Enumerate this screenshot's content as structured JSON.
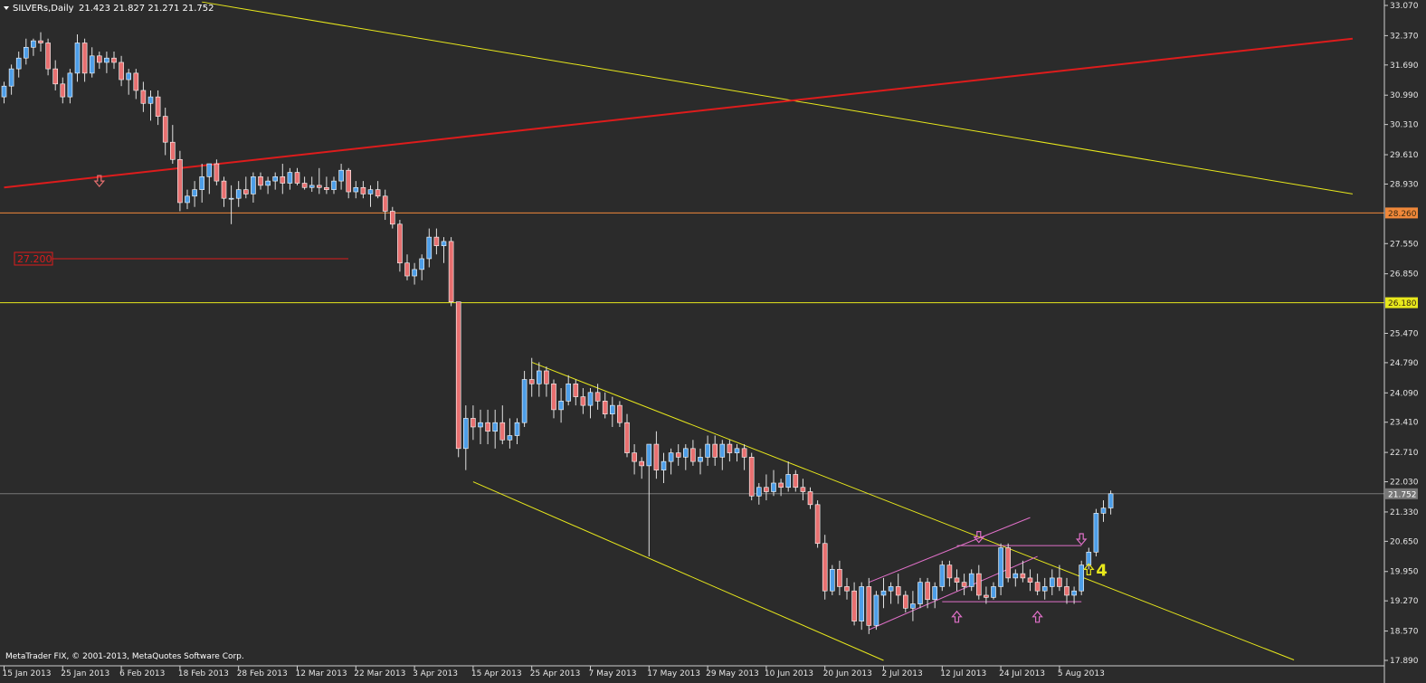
{
  "header": {
    "symbol": "SILVERs,Daily",
    "ohlc": "21.423 21.827 21.271 21.752"
  },
  "footer": {
    "copyright": "MetaTrader FIX, © 2001-2013, MetaQuotes Software Corp."
  },
  "colors": {
    "background": "#2b2b2b",
    "bull_candle": "#4d9ee8",
    "bear_candle": "#e87070",
    "wick": "#e0e0e0",
    "yellow_line": "#e8e81c",
    "red_line": "#dd1c1c",
    "orange_line": "#f0883a",
    "pink_line": "#e070c8",
    "axis_text": "#e6e6e6"
  },
  "chart_data": {
    "type": "candlestick",
    "symbol": "SILVERs",
    "timeframe": "Daily",
    "last": {
      "open": 21.423,
      "high": 21.827,
      "low": 21.271,
      "close": 21.752
    },
    "y_axis": {
      "ylim": [
        17.89,
        33.07
      ],
      "ticks": [
        "33.070",
        "32.370",
        "31.690",
        "30.990",
        "30.310",
        "29.610",
        "28.930",
        "28.260",
        "27.550",
        "26.850",
        "26.180",
        "25.470",
        "24.790",
        "24.090",
        "23.410",
        "22.710",
        "22.030",
        "21.752",
        "21.330",
        "20.650",
        "19.950",
        "19.270",
        "18.570",
        "17.890"
      ]
    },
    "x_axis": {
      "ticks": [
        {
          "label": "15 Jan 2013",
          "index": 0
        },
        {
          "label": "25 Jan 2013",
          "index": 8
        },
        {
          "label": "6 Feb 2013",
          "index": 16
        },
        {
          "label": "18 Feb 2013",
          "index": 24
        },
        {
          "label": "28 Feb 2013",
          "index": 32
        },
        {
          "label": "12 Mar 2013",
          "index": 40
        },
        {
          "label": "22 Mar 2013",
          "index": 48
        },
        {
          "label": "3 Apr 2013",
          "index": 56
        },
        {
          "label": "15 Apr 2013",
          "index": 64
        },
        {
          "label": "25 Apr 2013",
          "index": 72
        },
        {
          "label": "7 May 2013",
          "index": 80
        },
        {
          "label": "17 May 2013",
          "index": 88
        },
        {
          "label": "29 May 2013",
          "index": 96
        },
        {
          "label": "10 Jun 2013",
          "index": 104
        },
        {
          "label": "20 Jun 2013",
          "index": 112
        },
        {
          "label": "2 Jul 2013",
          "index": 120
        },
        {
          "label": "12 Jul 2013",
          "index": 128
        },
        {
          "label": "24 Jul 2013",
          "index": 136
        },
        {
          "label": "5 Aug 2013",
          "index": 144
        }
      ]
    },
    "candles": [
      [
        30.95,
        31.3,
        30.8,
        31.2
      ],
      [
        31.2,
        31.7,
        31.0,
        31.6
      ],
      [
        31.6,
        32.0,
        31.4,
        31.85
      ],
      [
        31.85,
        32.3,
        31.7,
        32.1
      ],
      [
        32.1,
        32.3,
        31.9,
        32.25
      ],
      [
        32.25,
        32.45,
        32.0,
        32.2
      ],
      [
        32.2,
        32.3,
        31.45,
        31.6
      ],
      [
        31.6,
        31.8,
        31.1,
        31.25
      ],
      [
        31.25,
        31.4,
        30.8,
        30.95
      ],
      [
        30.95,
        31.6,
        30.8,
        31.5
      ],
      [
        31.5,
        32.4,
        31.3,
        32.2
      ],
      [
        32.2,
        32.3,
        31.3,
        31.5
      ],
      [
        31.5,
        32.1,
        31.4,
        31.9
      ],
      [
        31.9,
        32.0,
        31.6,
        31.75
      ],
      [
        31.75,
        32.0,
        31.5,
        31.85
      ],
      [
        31.85,
        32.0,
        31.6,
        31.75
      ],
      [
        31.75,
        31.9,
        31.2,
        31.35
      ],
      [
        31.35,
        31.6,
        31.0,
        31.5
      ],
      [
        31.5,
        31.6,
        30.9,
        31.1
      ],
      [
        31.1,
        31.3,
        30.6,
        30.8
      ],
      [
        30.8,
        31.1,
        30.4,
        30.95
      ],
      [
        30.95,
        31.1,
        30.3,
        30.5
      ],
      [
        30.5,
        30.7,
        29.6,
        29.9
      ],
      [
        29.9,
        30.3,
        29.4,
        29.5
      ],
      [
        29.5,
        29.7,
        28.3,
        28.5
      ],
      [
        28.5,
        28.8,
        28.35,
        28.65
      ],
      [
        28.65,
        29.0,
        28.4,
        28.8
      ],
      [
        28.8,
        29.4,
        28.5,
        29.1
      ],
      [
        29.1,
        29.4,
        28.7,
        29.4
      ],
      [
        29.4,
        29.5,
        28.9,
        29.0
      ],
      [
        29.0,
        29.1,
        28.4,
        28.6
      ],
      [
        28.6,
        28.9,
        28.0,
        28.6
      ],
      [
        28.6,
        29.0,
        28.4,
        28.8
      ],
      [
        28.8,
        29.1,
        28.6,
        28.7
      ],
      [
        28.7,
        29.2,
        28.5,
        29.1
      ],
      [
        29.1,
        29.2,
        28.8,
        28.9
      ],
      [
        28.9,
        29.1,
        28.7,
        29.0
      ],
      [
        29.0,
        29.2,
        28.8,
        29.1
      ],
      [
        29.1,
        29.4,
        28.7,
        28.95
      ],
      [
        28.95,
        29.3,
        28.8,
        29.2
      ],
      [
        29.2,
        29.3,
        28.9,
        28.95
      ],
      [
        28.95,
        29.1,
        28.8,
        28.85
      ],
      [
        28.85,
        29.1,
        28.75,
        28.9
      ],
      [
        28.9,
        29.3,
        28.7,
        28.85
      ],
      [
        28.85,
        29.1,
        28.7,
        28.8
      ],
      [
        28.8,
        29.1,
        28.7,
        29.0
      ],
      [
        29.0,
        29.4,
        28.8,
        29.25
      ],
      [
        29.25,
        29.3,
        28.6,
        28.75
      ],
      [
        28.75,
        29.0,
        28.6,
        28.85
      ],
      [
        28.85,
        29.0,
        28.6,
        28.7
      ],
      [
        28.7,
        28.9,
        28.4,
        28.8
      ],
      [
        28.8,
        29.0,
        28.6,
        28.65
      ],
      [
        28.65,
        28.8,
        28.1,
        28.3
      ],
      [
        28.3,
        28.4,
        27.9,
        28.0
      ],
      [
        28.0,
        28.1,
        26.9,
        27.1
      ],
      [
        27.1,
        27.3,
        26.7,
        26.8
      ],
      [
        26.8,
        27.1,
        26.6,
        26.95
      ],
      [
        26.95,
        27.3,
        26.7,
        27.2
      ],
      [
        27.2,
        27.9,
        27.0,
        27.7
      ],
      [
        27.7,
        27.9,
        27.3,
        27.5
      ],
      [
        27.5,
        27.7,
        27.1,
        27.6
      ],
      [
        27.6,
        27.7,
        26.1,
        26.2
      ],
      [
        26.2,
        26.2,
        22.6,
        22.8
      ],
      [
        22.8,
        23.8,
        22.3,
        23.5
      ],
      [
        23.5,
        23.8,
        23.0,
        23.3
      ],
      [
        23.3,
        23.7,
        22.9,
        23.4
      ],
      [
        23.4,
        23.7,
        22.9,
        23.2
      ],
      [
        23.2,
        23.7,
        22.8,
        23.4
      ],
      [
        23.4,
        23.8,
        22.9,
        23.0
      ],
      [
        23.0,
        23.5,
        22.8,
        23.1
      ],
      [
        23.1,
        23.5,
        22.9,
        23.4
      ],
      [
        23.4,
        24.6,
        23.3,
        24.4
      ],
      [
        24.4,
        24.9,
        24.0,
        24.3
      ],
      [
        24.3,
        24.8,
        24.0,
        24.6
      ],
      [
        24.6,
        24.7,
        24.0,
        24.3
      ],
      [
        24.3,
        24.4,
        23.5,
        23.7
      ],
      [
        23.7,
        24.2,
        23.4,
        23.9
      ],
      [
        23.9,
        24.5,
        23.8,
        24.3
      ],
      [
        24.3,
        24.4,
        23.8,
        24.0
      ],
      [
        24.0,
        24.2,
        23.6,
        23.8
      ],
      [
        23.8,
        24.2,
        23.5,
        24.1
      ],
      [
        24.1,
        24.3,
        23.7,
        23.9
      ],
      [
        23.9,
        24.1,
        23.5,
        23.6
      ],
      [
        23.6,
        24.0,
        23.3,
        23.8
      ],
      [
        23.8,
        23.9,
        23.3,
        23.4
      ],
      [
        23.4,
        23.6,
        22.6,
        22.7
      ],
      [
        22.7,
        22.9,
        22.2,
        22.5
      ],
      [
        22.5,
        22.6,
        22.1,
        22.4
      ],
      [
        22.4,
        22.9,
        20.3,
        22.9
      ],
      [
        22.9,
        23.2,
        22.1,
        22.3
      ],
      [
        22.3,
        22.7,
        22.0,
        22.5
      ],
      [
        22.5,
        22.8,
        22.2,
        22.7
      ],
      [
        22.7,
        22.9,
        22.4,
        22.6
      ],
      [
        22.6,
        22.9,
        22.3,
        22.8
      ],
      [
        22.8,
        23.0,
        22.4,
        22.5
      ],
      [
        22.5,
        22.8,
        22.2,
        22.6
      ],
      [
        22.6,
        23.1,
        22.4,
        22.9
      ],
      [
        22.9,
        23.1,
        22.4,
        22.6
      ],
      [
        22.6,
        23.0,
        22.3,
        22.9
      ],
      [
        22.9,
        23.0,
        22.5,
        22.7
      ],
      [
        22.7,
        22.9,
        22.5,
        22.8
      ],
      [
        22.8,
        22.9,
        22.3,
        22.6
      ],
      [
        22.6,
        22.7,
        21.6,
        21.7
      ],
      [
        21.7,
        22.0,
        21.5,
        21.9
      ],
      [
        21.9,
        22.2,
        21.6,
        21.8
      ],
      [
        21.8,
        22.3,
        21.7,
        22.0
      ],
      [
        22.0,
        22.1,
        21.7,
        21.9
      ],
      [
        21.9,
        22.5,
        21.8,
        22.2
      ],
      [
        22.2,
        22.3,
        21.8,
        21.9
      ],
      [
        21.9,
        22.1,
        21.6,
        21.8
      ],
      [
        21.8,
        21.9,
        21.4,
        21.5
      ],
      [
        21.5,
        21.6,
        20.5,
        20.6
      ],
      [
        20.6,
        20.8,
        19.3,
        19.5
      ],
      [
        19.5,
        20.1,
        19.4,
        20.0
      ],
      [
        20.0,
        20.2,
        19.4,
        19.6
      ],
      [
        19.6,
        19.8,
        19.3,
        19.5
      ],
      [
        19.5,
        19.7,
        18.7,
        18.8
      ],
      [
        18.8,
        19.7,
        18.6,
        19.6
      ],
      [
        19.6,
        19.8,
        18.5,
        18.7
      ],
      [
        18.7,
        19.5,
        18.6,
        19.4
      ],
      [
        19.4,
        19.8,
        19.1,
        19.5
      ],
      [
        19.5,
        19.7,
        19.2,
        19.6
      ],
      [
        19.6,
        19.9,
        19.2,
        19.4
      ],
      [
        19.4,
        19.5,
        19.0,
        19.1
      ],
      [
        19.1,
        19.5,
        18.8,
        19.2
      ],
      [
        19.2,
        19.8,
        19.1,
        19.7
      ],
      [
        19.7,
        19.8,
        19.1,
        19.3
      ],
      [
        19.3,
        19.7,
        19.1,
        19.6
      ],
      [
        19.6,
        20.2,
        19.5,
        20.1
      ],
      [
        20.1,
        20.2,
        19.6,
        19.8
      ],
      [
        19.8,
        20.0,
        19.5,
        19.7
      ],
      [
        19.7,
        19.9,
        19.4,
        19.6
      ],
      [
        19.6,
        20.0,
        19.5,
        19.9
      ],
      [
        19.9,
        20.1,
        19.3,
        19.4
      ],
      [
        19.4,
        19.6,
        19.2,
        19.35
      ],
      [
        19.35,
        19.7,
        19.3,
        19.6
      ],
      [
        19.6,
        20.6,
        19.4,
        20.5
      ],
      [
        20.5,
        20.6,
        19.7,
        19.8
      ],
      [
        19.8,
        20.0,
        19.6,
        19.9
      ],
      [
        19.9,
        20.2,
        19.7,
        19.8
      ],
      [
        19.8,
        20.0,
        19.5,
        19.7
      ],
      [
        19.7,
        19.9,
        19.4,
        19.5
      ],
      [
        19.5,
        19.8,
        19.3,
        19.6
      ],
      [
        19.6,
        20.0,
        19.4,
        19.8
      ],
      [
        19.8,
        20.1,
        19.5,
        19.6
      ],
      [
        19.6,
        19.8,
        19.2,
        19.4
      ],
      [
        19.4,
        19.6,
        19.2,
        19.5
      ],
      [
        19.5,
        20.2,
        19.4,
        20.1
      ],
      [
        20.1,
        20.5,
        20.0,
        20.4
      ],
      [
        20.4,
        21.4,
        20.3,
        21.3
      ],
      [
        21.3,
        21.6,
        21.1,
        21.42
      ],
      [
        21.423,
        21.827,
        21.271,
        21.752
      ]
    ],
    "price_lines": [
      {
        "price": 28.26,
        "label": "28.260",
        "color": "#f0883a"
      },
      {
        "price": 26.18,
        "label": "26.180",
        "color": "#e8e81c"
      },
      {
        "price": 21.752,
        "label": "21.752",
        "color": "#777777"
      }
    ],
    "level_marker": {
      "label": "27.200",
      "price": 27.2,
      "color": "#dd1c1c"
    },
    "trend_lines": [
      {
        "name": "upper-downtrend",
        "color": "#e8e81c",
        "from": [
          27,
          33.15
        ],
        "to": [
          184,
          28.7
        ]
      },
      {
        "name": "long-uptrend",
        "color": "#dd1c1c",
        "from": [
          0,
          28.85
        ],
        "to": [
          184,
          32.3
        ]
      },
      {
        "name": "channel-top",
        "color": "#e8e81c",
        "from": [
          72,
          24.8
        ],
        "to": [
          176,
          17.9
        ]
      },
      {
        "name": "channel-bottom",
        "color": "#e8e81c",
        "from": [
          64,
          22.03
        ],
        "to": [
          120,
          17.89
        ]
      },
      {
        "name": "wedge-upper",
        "color": "#e070c8",
        "from": [
          118,
          19.7
        ],
        "to": [
          140,
          21.2
        ]
      },
      {
        "name": "wedge-lower",
        "color": "#e070c8",
        "from": [
          118,
          18.6
        ],
        "to": [
          141,
          20.3
        ]
      },
      {
        "name": "range-top",
        "color": "#e070c8",
        "from": [
          130,
          20.55
        ],
        "to": [
          147,
          20.55
        ]
      },
      {
        "name": "range-bottom",
        "color": "#e070c8",
        "from": [
          128,
          19.25
        ],
        "to": [
          147,
          19.25
        ]
      }
    ],
    "arrows": [
      {
        "name": "arrow-down-1",
        "index": 13,
        "price": 29.0,
        "dir": "down",
        "color": "#e87070"
      },
      {
        "name": "arrow-down-2",
        "index": 133,
        "price": 20.75,
        "dir": "down",
        "color": "#e070c8"
      },
      {
        "name": "arrow-up-1",
        "index": 130,
        "price": 18.9,
        "dir": "up",
        "color": "#e070c8"
      },
      {
        "name": "arrow-up-2",
        "index": 141,
        "price": 18.9,
        "dir": "up",
        "color": "#e070c8"
      },
      {
        "name": "arrow-down-3",
        "index": 147,
        "price": 20.7,
        "dir": "down",
        "color": "#e070c8"
      },
      {
        "name": "arrow-up-3",
        "index": 148,
        "price": 20.0,
        "dir": "up",
        "color": "#e8e81c"
      }
    ],
    "annotations": [
      {
        "text": "4",
        "index": 149,
        "price": 19.85,
        "color": "#e8e81c"
      }
    ]
  }
}
